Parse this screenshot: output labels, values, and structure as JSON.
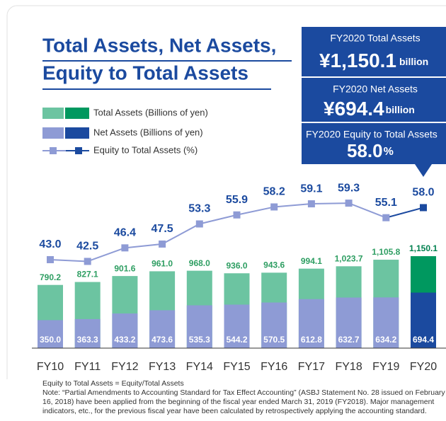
{
  "chart_data": {
    "type": "bar-line",
    "title": [
      "Total Assets, Net Assets,",
      "Equity to Total Assets"
    ],
    "highlights": [
      {
        "label": "FY2020 Total Assets",
        "value": "¥1,150.1",
        "unit": "billion"
      },
      {
        "label": "FY2020 Net Assets",
        "value": "¥694.4",
        "unit": "billion"
      },
      {
        "label": "FY2020 Equity to Total Assets",
        "value": "58.0",
        "unit": "%"
      }
    ],
    "categories": [
      "FY10",
      "FY11",
      "FY12",
      "FY13",
      "FY14",
      "FY15",
      "FY16",
      "FY17",
      "FY18",
      "FY19",
      "FY20"
    ],
    "series": [
      {
        "name": "Total Assets (Billions of yen)",
        "color": "#6cc4a1",
        "highlight_color": "#00985f",
        "values": [
          790.2,
          827.1,
          901.6,
          961.0,
          968.0,
          936.0,
          943.6,
          994.1,
          1023.7,
          1105.8,
          1150.1
        ],
        "value_labels": [
          "790.2",
          "827.1",
          "901.6",
          "961.0",
          "968.0",
          "936.0",
          "943.6",
          "994.1",
          "1,023.7",
          "1,105.8",
          "1,150.1"
        ]
      },
      {
        "name": "Net Assets (Billions of yen)",
        "color": "#8e9bd5",
        "highlight_color": "#1b4a9f",
        "values": [
          350.0,
          363.3,
          433.2,
          473.6,
          535.3,
          544.2,
          570.5,
          612.8,
          632.7,
          634.2,
          694.4
        ],
        "value_labels": [
          "350.0",
          "363.3",
          "433.2",
          "473.6",
          "535.3",
          "544.2",
          "570.5",
          "612.8",
          "632.7",
          "634.2",
          "694.4"
        ]
      },
      {
        "name": "Equity to Total Assets (%)",
        "color": "#8e9bd5",
        "highlight_color": "#1b4a9f",
        "axis": "y2",
        "values": [
          43.0,
          42.5,
          46.4,
          47.5,
          53.3,
          55.9,
          58.2,
          59.1,
          59.3,
          55.1,
          58.0
        ],
        "value_labels": [
          "43.0",
          "42.5",
          "46.4",
          "47.5",
          "53.3",
          "55.9",
          "58.2",
          "59.1",
          "59.3",
          "55.1",
          "58.0"
        ]
      }
    ],
    "ylim": [
      0,
      2000
    ],
    "y2lim": [
      17.5,
      63.6
    ],
    "notes": [
      "Equity to Total Assets = Equity/Total Assets",
      "Note: “Partial Amendments to Accounting Standard for Tax Effect Accounting” (ASBJ Statement No. 28 issued on February",
      "16, 2018) have been applied from the beginning of the fiscal year ended March 31, 2019 (FY2018). Major management",
      "indicators, etc., for the previous fiscal year have been calculated by retrospectively applying the accounting standard."
    ]
  }
}
